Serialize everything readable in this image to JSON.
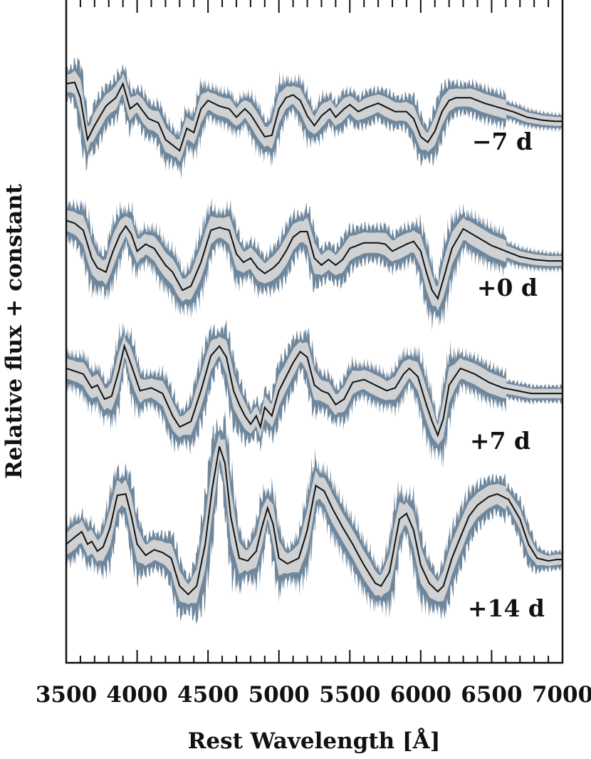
{
  "chart_data": {
    "type": "line",
    "xlabel": "Rest Wavelength   [Å]",
    "ylabel": "Relative flux + constant",
    "xlim": [
      3500,
      7000
    ],
    "x_ticks": [
      "3500",
      "4000",
      "4500",
      "5000",
      "5500",
      "6000",
      "6500",
      "7000"
    ],
    "grid": false,
    "colors": {
      "band_outer": "#6f879c",
      "band_inner": "#cfd1d3",
      "line": "#111111",
      "frame": "#111111"
    },
    "series": [
      {
        "name": "−7 d",
        "offset": 3.2,
        "spread": 0.14,
        "x": [
          3500,
          3560,
          3600,
          3650,
          3700,
          3780,
          3850,
          3900,
          3950,
          4000,
          4080,
          4150,
          4200,
          4300,
          4350,
          4400,
          4450,
          4500,
          4580,
          4650,
          4700,
          4760,
          4800,
          4850,
          4900,
          4950,
          5000,
          5050,
          5100,
          5150,
          5200,
          5250,
          5300,
          5360,
          5400,
          5460,
          5500,
          5560,
          5620,
          5700,
          5760,
          5820,
          5900,
          5950,
          6000,
          6050,
          6100,
          6150,
          6200,
          6250,
          6350,
          6450,
          6550,
          6650,
          6750,
          6850,
          6950,
          7000
        ],
        "y": [
          0.2,
          0.21,
          0.1,
          -0.2,
          -0.1,
          0.04,
          0.1,
          0.2,
          0.02,
          0.06,
          -0.05,
          -0.08,
          -0.2,
          -0.28,
          -0.12,
          -0.15,
          0.02,
          0.08,
          0.04,
          0.02,
          -0.04,
          0.02,
          -0.02,
          -0.1,
          -0.18,
          -0.17,
          0.02,
          0.1,
          0.12,
          0.08,
          -0.03,
          -0.1,
          -0.03,
          0.02,
          -0.04,
          0.02,
          0.05,
          0.0,
          0.03,
          0.06,
          0.03,
          0.0,
          0.0,
          -0.05,
          -0.18,
          -0.22,
          -0.14,
          0.0,
          0.08,
          0.1,
          0.1,
          0.06,
          0.03,
          0.0,
          -0.04,
          -0.06,
          -0.07,
          -0.07
        ]
      },
      {
        "name": "+0 d",
        "offset": 2.2,
        "spread": 0.16,
        "x": [
          3500,
          3560,
          3620,
          3680,
          3720,
          3780,
          3830,
          3880,
          3920,
          3960,
          4000,
          4060,
          4120,
          4200,
          4250,
          4320,
          4380,
          4450,
          4520,
          4580,
          4650,
          4700,
          4750,
          4800,
          4850,
          4900,
          4960,
          5000,
          5050,
          5100,
          5150,
          5200,
          5250,
          5300,
          5350,
          5400,
          5450,
          5500,
          5550,
          5600,
          5700,
          5750,
          5800,
          5900,
          5950,
          6000,
          6040,
          6080,
          6120,
          6160,
          6220,
          6300,
          6400,
          6500,
          6600,
          6700,
          6800,
          6900,
          7000
        ],
        "y": [
          0.22,
          0.2,
          0.15,
          -0.05,
          -0.12,
          -0.15,
          0.0,
          0.12,
          0.18,
          0.12,
          0.0,
          0.05,
          0.02,
          -0.1,
          -0.15,
          -0.28,
          -0.25,
          -0.08,
          0.15,
          0.17,
          0.15,
          -0.02,
          -0.08,
          -0.05,
          -0.12,
          -0.16,
          -0.12,
          -0.08,
          0.0,
          0.1,
          0.14,
          0.14,
          -0.05,
          -0.1,
          -0.06,
          -0.1,
          -0.06,
          0.02,
          0.04,
          0.06,
          0.06,
          0.05,
          0.0,
          0.05,
          0.07,
          0.0,
          -0.15,
          -0.28,
          -0.34,
          -0.2,
          0.02,
          0.16,
          0.1,
          0.04,
          0.0,
          -0.04,
          -0.06,
          -0.07,
          -0.07
        ]
      },
      {
        "name": "+7 d",
        "offset": 1.2,
        "spread": 0.15,
        "x": [
          3500,
          3560,
          3620,
          3680,
          3720,
          3770,
          3820,
          3870,
          3910,
          3960,
          4020,
          4100,
          4180,
          4250,
          4300,
          4380,
          4450,
          4520,
          4580,
          4630,
          4680,
          4720,
          4760,
          4800,
          4840,
          4870,
          4900,
          4950,
          5000,
          5050,
          5100,
          5150,
          5200,
          5250,
          5300,
          5350,
          5400,
          5460,
          5520,
          5600,
          5680,
          5760,
          5820,
          5880,
          5920,
          5980,
          6040,
          6080,
          6120,
          6160,
          6200,
          6280,
          6380,
          6480,
          6580,
          6680,
          6780,
          6880,
          7000
        ],
        "y": [
          0.16,
          0.14,
          0.12,
          0.02,
          0.04,
          -0.06,
          -0.04,
          0.14,
          0.32,
          0.18,
          0.0,
          0.02,
          -0.02,
          -0.18,
          -0.26,
          -0.22,
          0.0,
          0.25,
          0.32,
          0.24,
          0.0,
          -0.1,
          -0.18,
          -0.24,
          -0.18,
          -0.26,
          -0.12,
          -0.18,
          0.0,
          0.1,
          0.2,
          0.28,
          0.24,
          0.04,
          0.0,
          -0.02,
          -0.1,
          -0.06,
          0.06,
          0.08,
          0.04,
          0.0,
          0.02,
          0.12,
          0.16,
          0.1,
          -0.1,
          -0.22,
          -0.32,
          -0.2,
          0.04,
          0.16,
          0.12,
          0.06,
          0.02,
          0.0,
          -0.02,
          -0.02,
          -0.02
        ]
      },
      {
        "name": "+14 d",
        "offset": 0.1,
        "spread": 0.16,
        "x": [
          3500,
          3560,
          3610,
          3650,
          3680,
          3720,
          3760,
          3810,
          3860,
          3920,
          3960,
          4000,
          4060,
          4120,
          4180,
          4240,
          4300,
          4360,
          4420,
          4480,
          4530,
          4580,
          4620,
          4660,
          4720,
          4780,
          4840,
          4880,
          4920,
          4960,
          5000,
          5060,
          5140,
          5200,
          5260,
          5320,
          5380,
          5450,
          5520,
          5600,
          5680,
          5720,
          5780,
          5850,
          5900,
          5950,
          6000,
          6060,
          6120,
          6160,
          6220,
          6280,
          6340,
          6400,
          6480,
          6540,
          6620,
          6700,
          6760,
          6820,
          6900,
          6960,
          7000
        ],
        "y": [
          0.0,
          0.05,
          0.09,
          0.0,
          0.02,
          -0.05,
          -0.02,
          0.12,
          0.35,
          0.36,
          0.2,
          0.0,
          -0.08,
          -0.04,
          -0.06,
          -0.1,
          -0.3,
          -0.36,
          -0.3,
          0.0,
          0.4,
          0.7,
          0.58,
          0.2,
          -0.1,
          -0.12,
          -0.05,
          0.12,
          0.26,
          0.14,
          -0.1,
          -0.14,
          -0.1,
          0.1,
          0.42,
          0.38,
          0.25,
          0.12,
          0.0,
          -0.15,
          -0.28,
          -0.3,
          -0.2,
          0.18,
          0.22,
          0.1,
          -0.15,
          -0.28,
          -0.34,
          -0.3,
          -0.1,
          0.05,
          0.2,
          0.28,
          0.34,
          0.36,
          0.32,
          0.18,
          0.0,
          -0.1,
          -0.12,
          -0.11,
          -0.11
        ]
      }
    ]
  }
}
